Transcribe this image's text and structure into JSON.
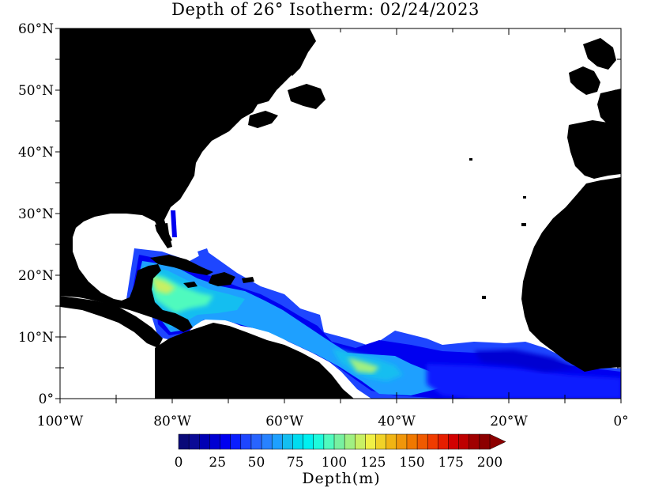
{
  "title": "Depth of 26° Isotherm: 02/24/2023",
  "map": {
    "lon_range": [
      -100,
      0
    ],
    "lat_range": [
      0,
      60
    ],
    "lat_ticks": [
      {
        "value": 60,
        "label": "60°N"
      },
      {
        "value": 50,
        "label": "50°N"
      },
      {
        "value": 40,
        "label": "40°N"
      },
      {
        "value": 30,
        "label": "30°N"
      },
      {
        "value": 20,
        "label": "20°N"
      },
      {
        "value": 10,
        "label": "10°N"
      },
      {
        "value": 0,
        "label": "0°"
      }
    ],
    "lon_ticks": [
      {
        "value": -100,
        "label": "100°W"
      },
      {
        "value": -80,
        "label": "80°W"
      },
      {
        "value": -60,
        "label": "60°W"
      },
      {
        "value": -40,
        "label": "40°W"
      },
      {
        "value": -20,
        "label": "20°W"
      },
      {
        "value": 0,
        "label": "0°"
      }
    ],
    "land_color": "#000000",
    "ocean_nodata_color": "#ffffff"
  },
  "colorbar": {
    "min": 0,
    "max": 200,
    "step": 5,
    "tick_labels": [
      "0",
      "25",
      "50",
      "75",
      "100",
      "125",
      "150",
      "175",
      "200"
    ],
    "unit_label": "Depth(m)",
    "colors": [
      "#0a0a78",
      "#0a0a96",
      "#0000b4",
      "#0000d2",
      "#0000f0",
      "#0a1eff",
      "#1e46ff",
      "#2864ff",
      "#2882ff",
      "#1ea0ff",
      "#14bef0",
      "#00dcf0",
      "#00f0f0",
      "#1efadc",
      "#50fabe",
      "#78f0a0",
      "#a0f082",
      "#c8f064",
      "#f0f046",
      "#f0d228",
      "#f0b414",
      "#f0960a",
      "#f07800",
      "#f05a00",
      "#f03c00",
      "#e61e00",
      "#d20000",
      "#be0000",
      "#a00000",
      "#8c0000"
    ]
  }
}
